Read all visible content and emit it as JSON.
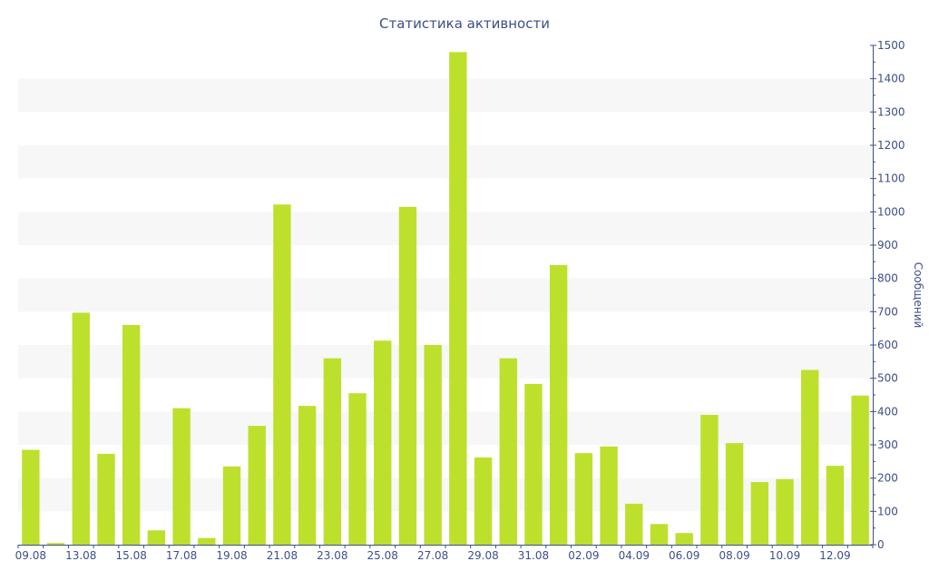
{
  "chart_data": {
    "type": "bar",
    "title": "Статистика активности",
    "ylabel": "Сообщений",
    "y_axis_side": "right",
    "ylim": [
      0,
      1500
    ],
    "yticks": [
      0,
      100,
      200,
      300,
      400,
      500,
      600,
      700,
      800,
      900,
      1000,
      1100,
      1200,
      1300,
      1400,
      1500
    ],
    "categories": [
      "09.08",
      "11.08",
      "13.08",
      "14.08",
      "15.08",
      "16.08",
      "17.08",
      "18.08",
      "19.08",
      "20.08",
      "21.08",
      "22.08",
      "23.08",
      "24.08",
      "25.08",
      "26.08",
      "27.08",
      "28.08",
      "29.08",
      "30.08",
      "31.08",
      "01.09",
      "02.09",
      "03.09",
      "04.09",
      "05.09",
      "06.09",
      "07.09",
      "08.09",
      "09.09",
      "10.09",
      "11.09",
      "12.09",
      "13.09"
    ],
    "values": [
      285,
      5,
      697,
      273,
      660,
      43,
      410,
      20,
      235,
      357,
      1022,
      417,
      560,
      455,
      613,
      1015,
      600,
      1480,
      262,
      560,
      483,
      840,
      275,
      295,
      123,
      62,
      35,
      390,
      305,
      188,
      197,
      525,
      237,
      448
    ],
    "xtick_labels": [
      {
        "index": 0,
        "label": "09.08"
      },
      {
        "index": 2,
        "label": "13.08"
      },
      {
        "index": 4,
        "label": "15.08"
      },
      {
        "index": 6,
        "label": "17.08"
      },
      {
        "index": 8,
        "label": "19.08"
      },
      {
        "index": 10,
        "label": "21.08"
      },
      {
        "index": 12,
        "label": "23.08"
      },
      {
        "index": 14,
        "label": "25.08"
      },
      {
        "index": 16,
        "label": "27.08"
      },
      {
        "index": 18,
        "label": "29.08"
      },
      {
        "index": 20,
        "label": "31.08"
      },
      {
        "index": 22,
        "label": "02.09"
      },
      {
        "index": 24,
        "label": "04.09"
      },
      {
        "index": 26,
        "label": "06.09"
      },
      {
        "index": 28,
        "label": "08.09"
      },
      {
        "index": 30,
        "label": "10.09"
      },
      {
        "index": 32,
        "label": "12.09"
      }
    ],
    "grid": "alternating horizontal bands",
    "colors": {
      "bar": "#bde02d",
      "band": "#f7f7f7",
      "axis": "#3c4f8a",
      "text": "#3c4f8a"
    }
  }
}
